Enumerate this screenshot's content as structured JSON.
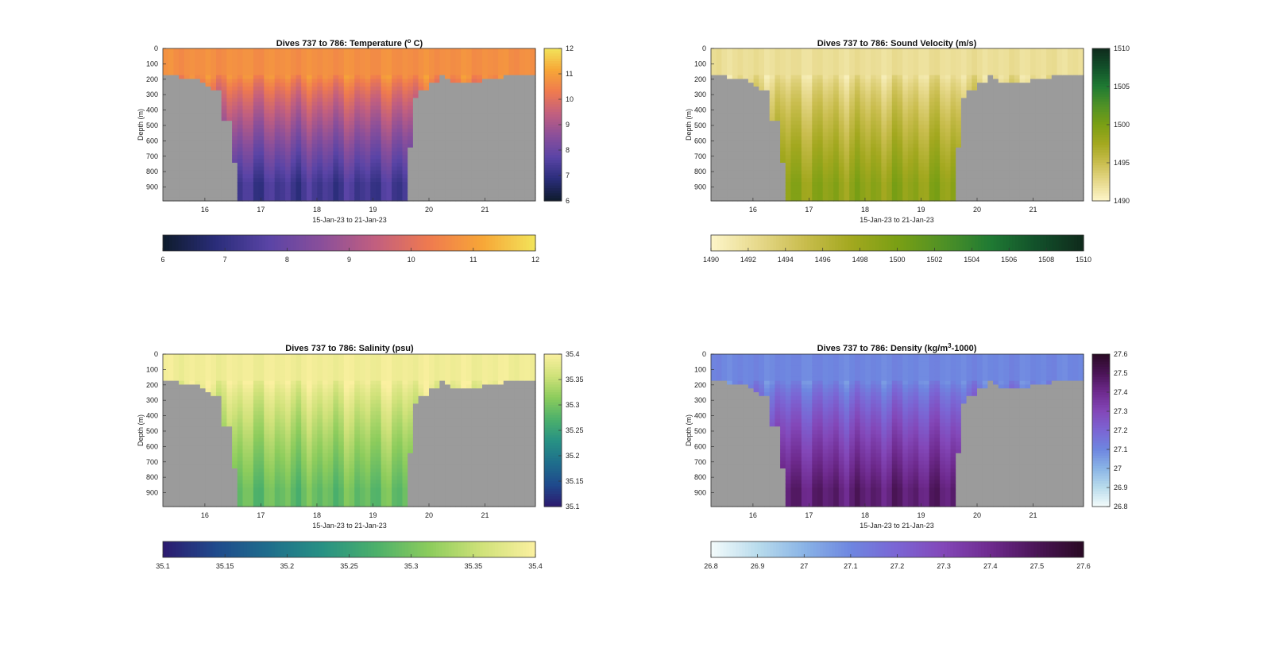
{
  "chart_data": [
    {
      "type": "heatmap",
      "title_main": "Dives 737 to 786: Temperature (",
      "title_sup": "o",
      "title_tail": " C)",
      "ylabel": "Depth (m)",
      "xlabel": "15-Jan-23 to 21-Jan-23",
      "xlim": [
        15.25,
        21.9
      ],
      "ylim": [
        0,
        990
      ],
      "x_ticks": [
        16,
        17,
        18,
        19,
        20,
        21
      ],
      "y_ticks": [
        0,
        100,
        200,
        300,
        400,
        500,
        600,
        700,
        800,
        900
      ],
      "clim": [
        6,
        12
      ],
      "colorbar_ticks": [
        6,
        7,
        8,
        9,
        10,
        11,
        12
      ],
      "h_colorbar_ticks": [
        6,
        7,
        8,
        9,
        10,
        11,
        12
      ],
      "colormap": [
        "#0e1b2c",
        "#2a2d7a",
        "#5a44a6",
        "#8b4f9a",
        "#c25f7f",
        "#ef7a4f",
        "#f7a637",
        "#f2e45a"
      ],
      "surface_value": 10.7,
      "deep_value": 7.3,
      "gray_color": "#9b9b9b"
    },
    {
      "type": "heatmap",
      "title_main": "Dives 737 to 786: Sound Velocity (m/s)",
      "title_sup": "",
      "title_tail": "",
      "ylabel": "Depth (m)",
      "xlabel": "15-Jan-23 to 21-Jan-23",
      "xlim": [
        15.25,
        21.9
      ],
      "ylim": [
        0,
        990
      ],
      "x_ticks": [
        16,
        17,
        18,
        19,
        20,
        21
      ],
      "y_ticks": [
        0,
        100,
        200,
        300,
        400,
        500,
        600,
        700,
        800,
        900
      ],
      "clim": [
        1490,
        1510
      ],
      "colorbar_ticks": [
        1490,
        1495,
        1500,
        1505,
        1510
      ],
      "h_colorbar_ticks": [
        1490,
        1492,
        1494,
        1496,
        1498,
        1500,
        1502,
        1504,
        1506,
        1508,
        1510
      ],
      "colormap": [
        "#fdf6c9",
        "#e7d98c",
        "#c9bd4e",
        "#a3a81f",
        "#7a9f14",
        "#4f9126",
        "#1f7a33",
        "#12502a",
        "#0f2a1c"
      ],
      "surface_value": 1492.0,
      "deep_value": 1498.8,
      "gray_color": "#9b9b9b"
    },
    {
      "type": "heatmap",
      "title_main": "Dives 737 to 786: Salinity (psu)",
      "title_sup": "",
      "title_tail": "",
      "ylabel": "Depth (m)",
      "xlabel": "15-Jan-23 to 21-Jan-23",
      "xlim": [
        15.25,
        21.9
      ],
      "ylim": [
        0,
        990
      ],
      "x_ticks": [
        16,
        17,
        18,
        19,
        20,
        21
      ],
      "y_ticks": [
        0,
        100,
        200,
        300,
        400,
        500,
        600,
        700,
        800,
        900
      ],
      "clim": [
        35.1,
        35.4
      ],
      "colorbar_ticks": [
        35.1,
        35.15,
        35.2,
        35.25,
        35.3,
        35.35,
        35.4
      ],
      "h_colorbar_ticks": [
        35.1,
        35.15,
        35.2,
        35.25,
        35.3,
        35.35,
        35.4
      ],
      "colormap": [
        "#2c1a6f",
        "#1f4a8c",
        "#1f6e8c",
        "#279184",
        "#4cb06b",
        "#8ccc5c",
        "#d0e27a",
        "#fbf0a0"
      ],
      "surface_value": 35.39,
      "deep_value": 35.29,
      "gray_color": "#9b9b9b"
    },
    {
      "type": "heatmap",
      "title_main": "Dives 737 to 786: Density (kg/m",
      "title_sup": "3",
      "title_tail": "-1000)",
      "ylabel": "Depth (m)",
      "xlabel": "15-Jan-23 to 21-Jan-23",
      "xlim": [
        15.25,
        21.9
      ],
      "ylim": [
        0,
        990
      ],
      "x_ticks": [
        16,
        17,
        18,
        19,
        20,
        21
      ],
      "y_ticks": [
        0,
        100,
        200,
        300,
        400,
        500,
        600,
        700,
        800,
        900
      ],
      "clim": [
        26.8,
        27.6
      ],
      "colorbar_ticks": [
        26.8,
        26.9,
        27,
        27.1,
        27.2,
        27.3,
        27.4,
        27.5,
        27.6
      ],
      "h_colorbar_ticks": [
        26.8,
        26.9,
        27,
        27.1,
        27.2,
        27.3,
        27.4,
        27.5,
        27.6
      ],
      "colormap": [
        "#f4fbfb",
        "#b9dcec",
        "#8ab4e6",
        "#6e86e0",
        "#7b65d4",
        "#8347b8",
        "#6e2a8e",
        "#4a1456",
        "#2a0a24"
      ],
      "surface_value": 27.1,
      "deep_value": 27.45,
      "gray_color": "#9b9b9b"
    }
  ]
}
